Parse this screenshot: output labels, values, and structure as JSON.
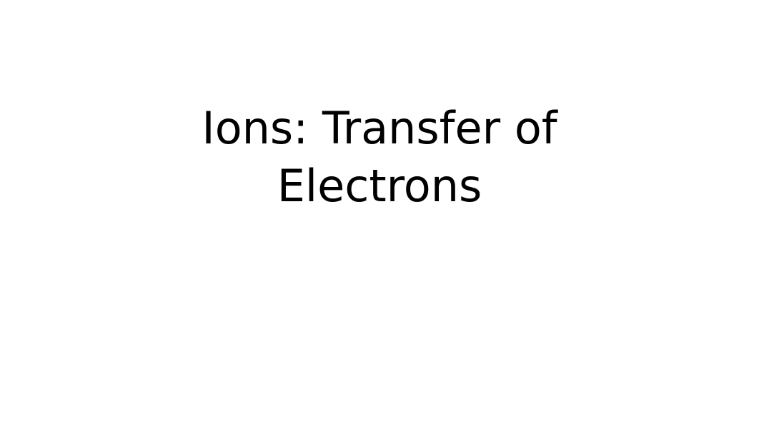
{
  "slide": {
    "title_line1": "Ions: Transfer of",
    "title_line2": "Electrons",
    "title_fontsize": 62,
    "title_color": "#000000",
    "background_color": "#ffffff",
    "font_family": "DejaVu Sans"
  }
}
